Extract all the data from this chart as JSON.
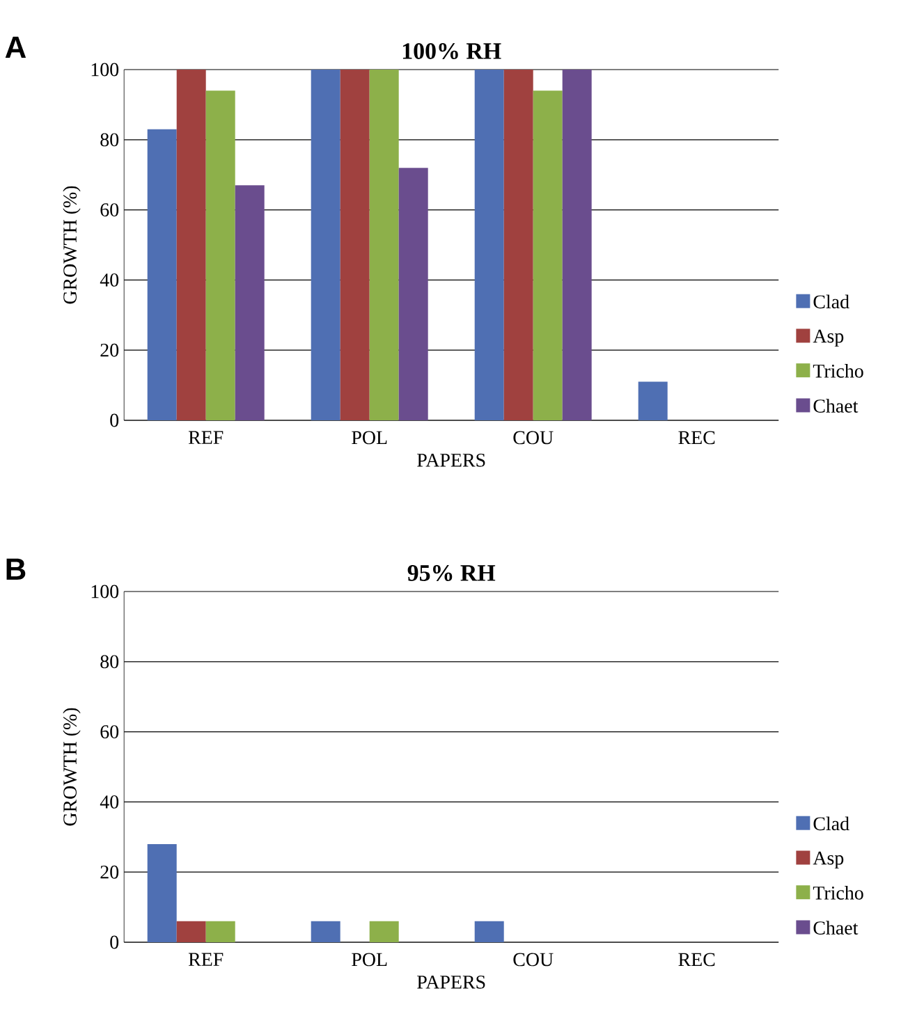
{
  "chart_data": [
    {
      "type": "bar",
      "title": "100% RH",
      "xlabel": "PAPERS",
      "ylabel": "GROWTH (%)",
      "categories": [
        "REF",
        "POL",
        "COU",
        "REC"
      ],
      "series": [
        {
          "name": "Clad",
          "color": "#4f6fb3",
          "values": [
            83,
            100,
            100,
            11
          ]
        },
        {
          "name": "Asp",
          "color": "#a0413f",
          "values": [
            100,
            100,
            100,
            0
          ]
        },
        {
          "name": "Tricho",
          "color": "#8db04a",
          "values": [
            94,
            100,
            94,
            0
          ]
        },
        {
          "name": "Chaet",
          "color": "#6a4d8e",
          "values": [
            67,
            72,
            100,
            0
          ]
        }
      ],
      "ylim": [
        0,
        100
      ],
      "yticks": [
        0,
        20,
        40,
        60,
        80,
        100
      ],
      "grid": "y",
      "legend": "right",
      "annotations": [
        "A"
      ]
    },
    {
      "type": "bar",
      "title": "95% RH",
      "xlabel": "PAPERS",
      "ylabel": "GROWTH (%)",
      "categories": [
        "REF",
        "POL",
        "COU",
        "REC"
      ],
      "series": [
        {
          "name": "Clad",
          "color": "#4f6fb3",
          "values": [
            28,
            6,
            6,
            0
          ]
        },
        {
          "name": "Asp",
          "color": "#a0413f",
          "values": [
            6,
            0,
            0,
            0
          ]
        },
        {
          "name": "Tricho",
          "color": "#8db04a",
          "values": [
            6,
            6,
            0,
            0
          ]
        },
        {
          "name": "Chaet",
          "color": "#6a4d8e",
          "values": [
            0,
            0,
            0,
            0
          ]
        }
      ],
      "ylim": [
        0,
        100
      ],
      "yticks": [
        0,
        20,
        40,
        60,
        80,
        100
      ],
      "grid": "y",
      "legend": "right",
      "annotations": [
        "B"
      ]
    }
  ]
}
